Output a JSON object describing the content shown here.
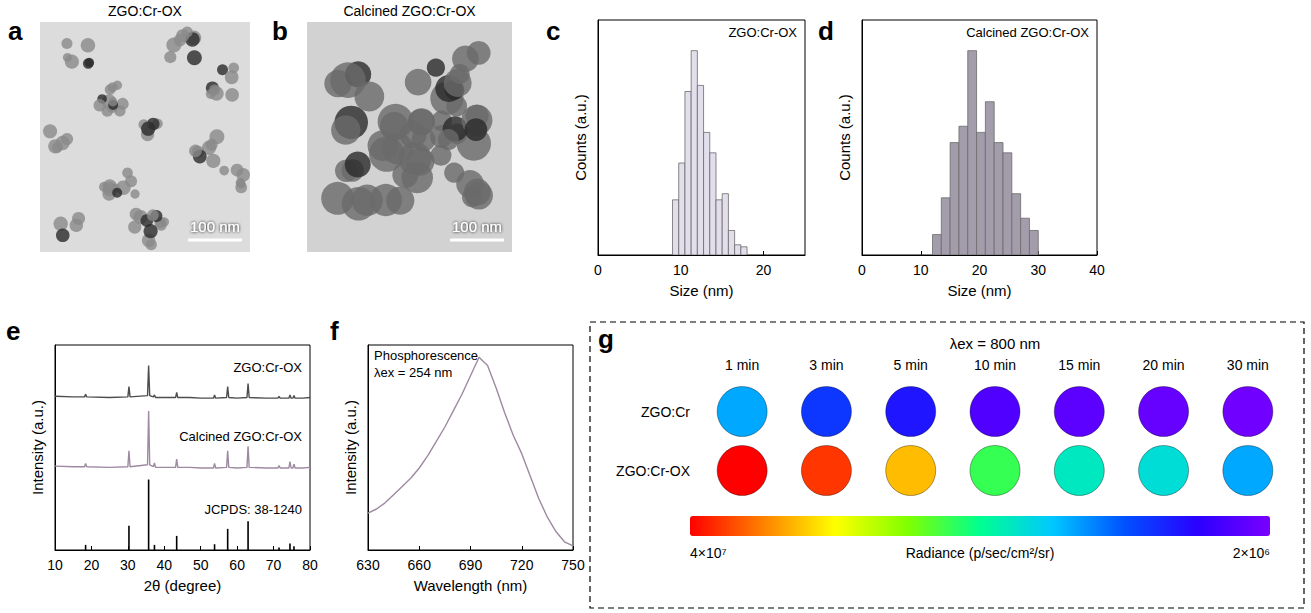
{
  "images": [
    {
      "panel": "a",
      "title": "ZGO:Cr-OX",
      "scale_bar": "100 nm"
    },
    {
      "panel": "b",
      "title": "Calcined ZGO:Cr-OX",
      "scale_bar": "100 nm"
    }
  ],
  "chart_data": [
    {
      "panel": "c",
      "type": "histogram",
      "annotation": "ZGO:Cr-OX",
      "x_label": "Size (nm)",
      "y_label": "Counts (a.u.)",
      "bins": [
        9,
        9.75,
        10.5,
        11.25,
        12,
        12.75,
        13.5,
        14.25,
        15,
        15.75,
        16.5,
        17.25,
        18
      ],
      "counts": [
        0.27,
        0.45,
        0.8,
        1.0,
        0.83,
        0.6,
        0.5,
        0.27,
        0.3,
        0.12,
        0.05,
        0.04
      ],
      "color": "#e2deeb",
      "xlim": [
        0,
        25
      ],
      "xticks": [
        0,
        10,
        20
      ],
      "ylim": [
        0,
        1.15
      ],
      "tick_labels": "x"
    },
    {
      "panel": "d",
      "type": "histogram",
      "annotation": "Calcined ZGO:Cr-OX",
      "x_label": "Size (nm)",
      "y_label": "Counts (a.u.)",
      "bins": [
        12,
        13.5,
        15,
        16.5,
        18,
        19.5,
        21,
        22.5,
        24,
        25.5,
        27,
        28.5,
        30
      ],
      "counts": [
        0.1,
        0.28,
        0.55,
        0.63,
        1.0,
        0.6,
        0.75,
        0.55,
        0.5,
        0.3,
        0.18,
        0.12
      ],
      "color": "#a39cab",
      "xlim": [
        0,
        40
      ],
      "xticks": [
        0,
        10,
        20,
        30,
        40
      ],
      "ylim": [
        0,
        1.15
      ],
      "tick_labels": "x"
    },
    {
      "panel": "e",
      "type": "line",
      "x_label": "2θ (degree)",
      "y_label": "Intensity (a.u.)",
      "x": [
        10,
        15,
        18.1,
        18.4,
        18.7,
        25,
        30,
        30.3,
        30.6,
        35.4,
        35.7,
        36,
        37,
        37.3,
        37.6,
        40,
        43.1,
        43.4,
        43.7,
        47,
        50,
        53.5,
        53.8,
        54.1,
        57.1,
        57.4,
        57.7,
        60,
        62.7,
        63,
        63.3,
        68,
        71.2,
        71.5,
        71.8,
        74.2,
        74.5,
        74.8,
        75.3,
        75.6,
        75.9,
        78,
        80
      ],
      "series": [
        {
          "name": "ZGO:Cr-OX",
          "color": "#4d4d4d",
          "values": [
            2.4,
            2.39,
            2.39,
            2.43,
            2.39,
            2.38,
            2.39,
            2.55,
            2.39,
            2.41,
            2.88,
            2.41,
            2.39,
            2.42,
            2.38,
            2.38,
            2.38,
            2.46,
            2.38,
            2.38,
            2.37,
            2.37,
            2.42,
            2.37,
            2.38,
            2.55,
            2.38,
            2.37,
            2.38,
            2.6,
            2.38,
            2.37,
            2.37,
            2.4,
            2.37,
            2.37,
            2.42,
            2.37,
            2.37,
            2.41,
            2.37,
            2.37,
            2.38
          ]
        },
        {
          "name": "Calcined ZGO:Cr-OX",
          "color": "#9d8aa0",
          "values": [
            1.31,
            1.3,
            1.3,
            1.35,
            1.3,
            1.29,
            1.3,
            1.55,
            1.3,
            1.33,
            2.17,
            1.33,
            1.3,
            1.36,
            1.29,
            1.29,
            1.29,
            1.42,
            1.29,
            1.29,
            1.28,
            1.28,
            1.35,
            1.28,
            1.29,
            1.55,
            1.29,
            1.28,
            1.29,
            1.62,
            1.29,
            1.28,
            1.28,
            1.32,
            1.28,
            1.28,
            1.38,
            1.28,
            1.28,
            1.34,
            1.28,
            1.28,
            1.29
          ]
        },
        {
          "name": "JCPDS: 38-1240",
          "type": "stick",
          "color": "#000000",
          "x": [
            18.4,
            30.3,
            35.7,
            37.3,
            43.4,
            53.8,
            57.4,
            63,
            71.5,
            74.5,
            75.6
          ],
          "values": [
            0.08,
            0.38,
            1.1,
            0.08,
            0.22,
            0.09,
            0.33,
            0.45,
            0.04,
            0.1,
            0.06
          ]
        }
      ],
      "xlim": [
        10,
        80
      ],
      "xticks": [
        10,
        20,
        30,
        40,
        50,
        60,
        70,
        80
      ],
      "ylim": [
        0,
        3.2
      ],
      "tick_labels": "x"
    },
    {
      "panel": "f",
      "type": "line",
      "annotations": [
        "Phosphorescence",
        "λex = 254 nm"
      ],
      "x_label": "Wavelength (nm)",
      "y_label": "Intensity (a.u.)",
      "x": [
        630,
        635,
        640,
        645,
        650,
        655,
        660,
        665,
        670,
        675,
        680,
        685,
        690,
        695,
        700,
        705,
        710,
        715,
        720,
        725,
        730,
        735,
        740,
        745,
        750
      ],
      "values": [
        0.18,
        0.2,
        0.23,
        0.27,
        0.31,
        0.35,
        0.4,
        0.46,
        0.53,
        0.6,
        0.68,
        0.76,
        0.85,
        0.94,
        0.9,
        0.79,
        0.67,
        0.56,
        0.47,
        0.36,
        0.25,
        0.16,
        0.09,
        0.04,
        0.02
      ],
      "color": "#9d8aa0",
      "xlim": [
        630,
        750
      ],
      "xticks": [
        630,
        660,
        690,
        720,
        750
      ],
      "ylim": [
        0,
        1
      ],
      "tick_labels": "x"
    },
    {
      "panel": "g",
      "type": "heatmap",
      "marker": "circle",
      "title": "λex = 800 nm",
      "categories": [
        "1 min",
        "3 min",
        "5 min",
        "10 min",
        "15 min",
        "20 min",
        "30 min"
      ],
      "series": [
        {
          "name": "ZGO:Cr",
          "values": [
            15000000,
            10000000,
            8000000,
            4500000,
            3800000,
            3200000,
            2600000
          ]
        },
        {
          "name": "ZGO:Cr-OX",
          "values": [
            40000000,
            38000000,
            33000000,
            23000000,
            19000000,
            18000000,
            15000000
          ]
        }
      ],
      "colorbar": {
        "label": "Radiance (p/sec/cm²/sr)",
        "range": [
          2000000,
          40000000
        ],
        "ticks": [
          {
            "value": 40000000,
            "label": "4×10⁷"
          },
          {
            "value": 2000000,
            "label": "2×10⁶"
          }
        ],
        "colors": [
          "#7a00ff",
          "#2a00ff",
          "#0050ff",
          "#00c8ff",
          "#00ff90",
          "#80ff00",
          "#ffff00",
          "#ff8000",
          "#ff0000"
        ]
      }
    }
  ]
}
